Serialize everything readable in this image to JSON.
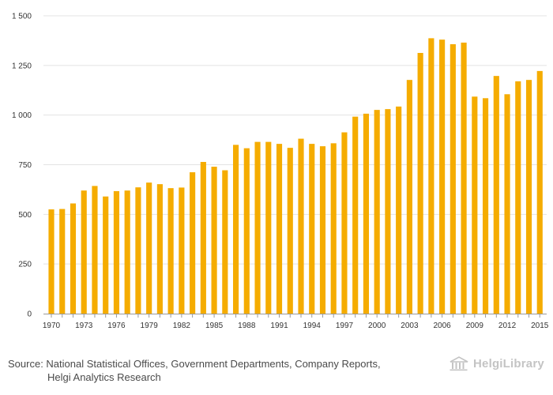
{
  "chart_data": {
    "type": "bar",
    "title": "",
    "xlabel": "",
    "ylabel": "",
    "ylim": [
      0,
      1500
    ],
    "yticks": [
      0,
      250,
      500,
      750,
      1000,
      1250,
      1500
    ],
    "ytick_labels": [
      "0",
      "250",
      "500",
      "750",
      "1 000",
      "1 250",
      "1 500"
    ],
    "bar_color": "#f5ac00",
    "grid": true,
    "categories": [
      1970,
      1971,
      1972,
      1973,
      1974,
      1975,
      1976,
      1977,
      1978,
      1979,
      1980,
      1981,
      1982,
      1983,
      1984,
      1985,
      1986,
      1987,
      1988,
      1989,
      1990,
      1991,
      1992,
      1993,
      1994,
      1995,
      1996,
      1997,
      1998,
      1999,
      2000,
      2001,
      2002,
      2003,
      2004,
      2005,
      2006,
      2007,
      2008,
      2009,
      2010,
      2011,
      2012,
      2013,
      2014,
      2015
    ],
    "values": [
      525,
      527,
      555,
      620,
      643,
      590,
      617,
      620,
      636,
      660,
      652,
      632,
      635,
      712,
      764,
      740,
      722,
      850,
      833,
      865,
      865,
      855,
      835,
      881,
      855,
      843,
      858,
      913,
      992,
      1007,
      1026,
      1030,
      1043,
      1177,
      1313,
      1387,
      1380,
      1357,
      1365,
      1093,
      1085,
      1197,
      1105,
      1170,
      1177,
      1222
    ],
    "xtick_labels": [
      "1970",
      "1973",
      "1976",
      "1979",
      "1982",
      "1985",
      "1988",
      "1991",
      "1994",
      "1997",
      "2000",
      "2003",
      "2006",
      "2009",
      "2012",
      "2015"
    ]
  },
  "footer": {
    "source_line1": "Source: National Statistical Offices, Government Departments, Company Reports,",
    "source_line2": "Helgi Analytics Research"
  },
  "brand": {
    "name": "HelgiLibrary",
    "icon": "library-building-icon"
  }
}
